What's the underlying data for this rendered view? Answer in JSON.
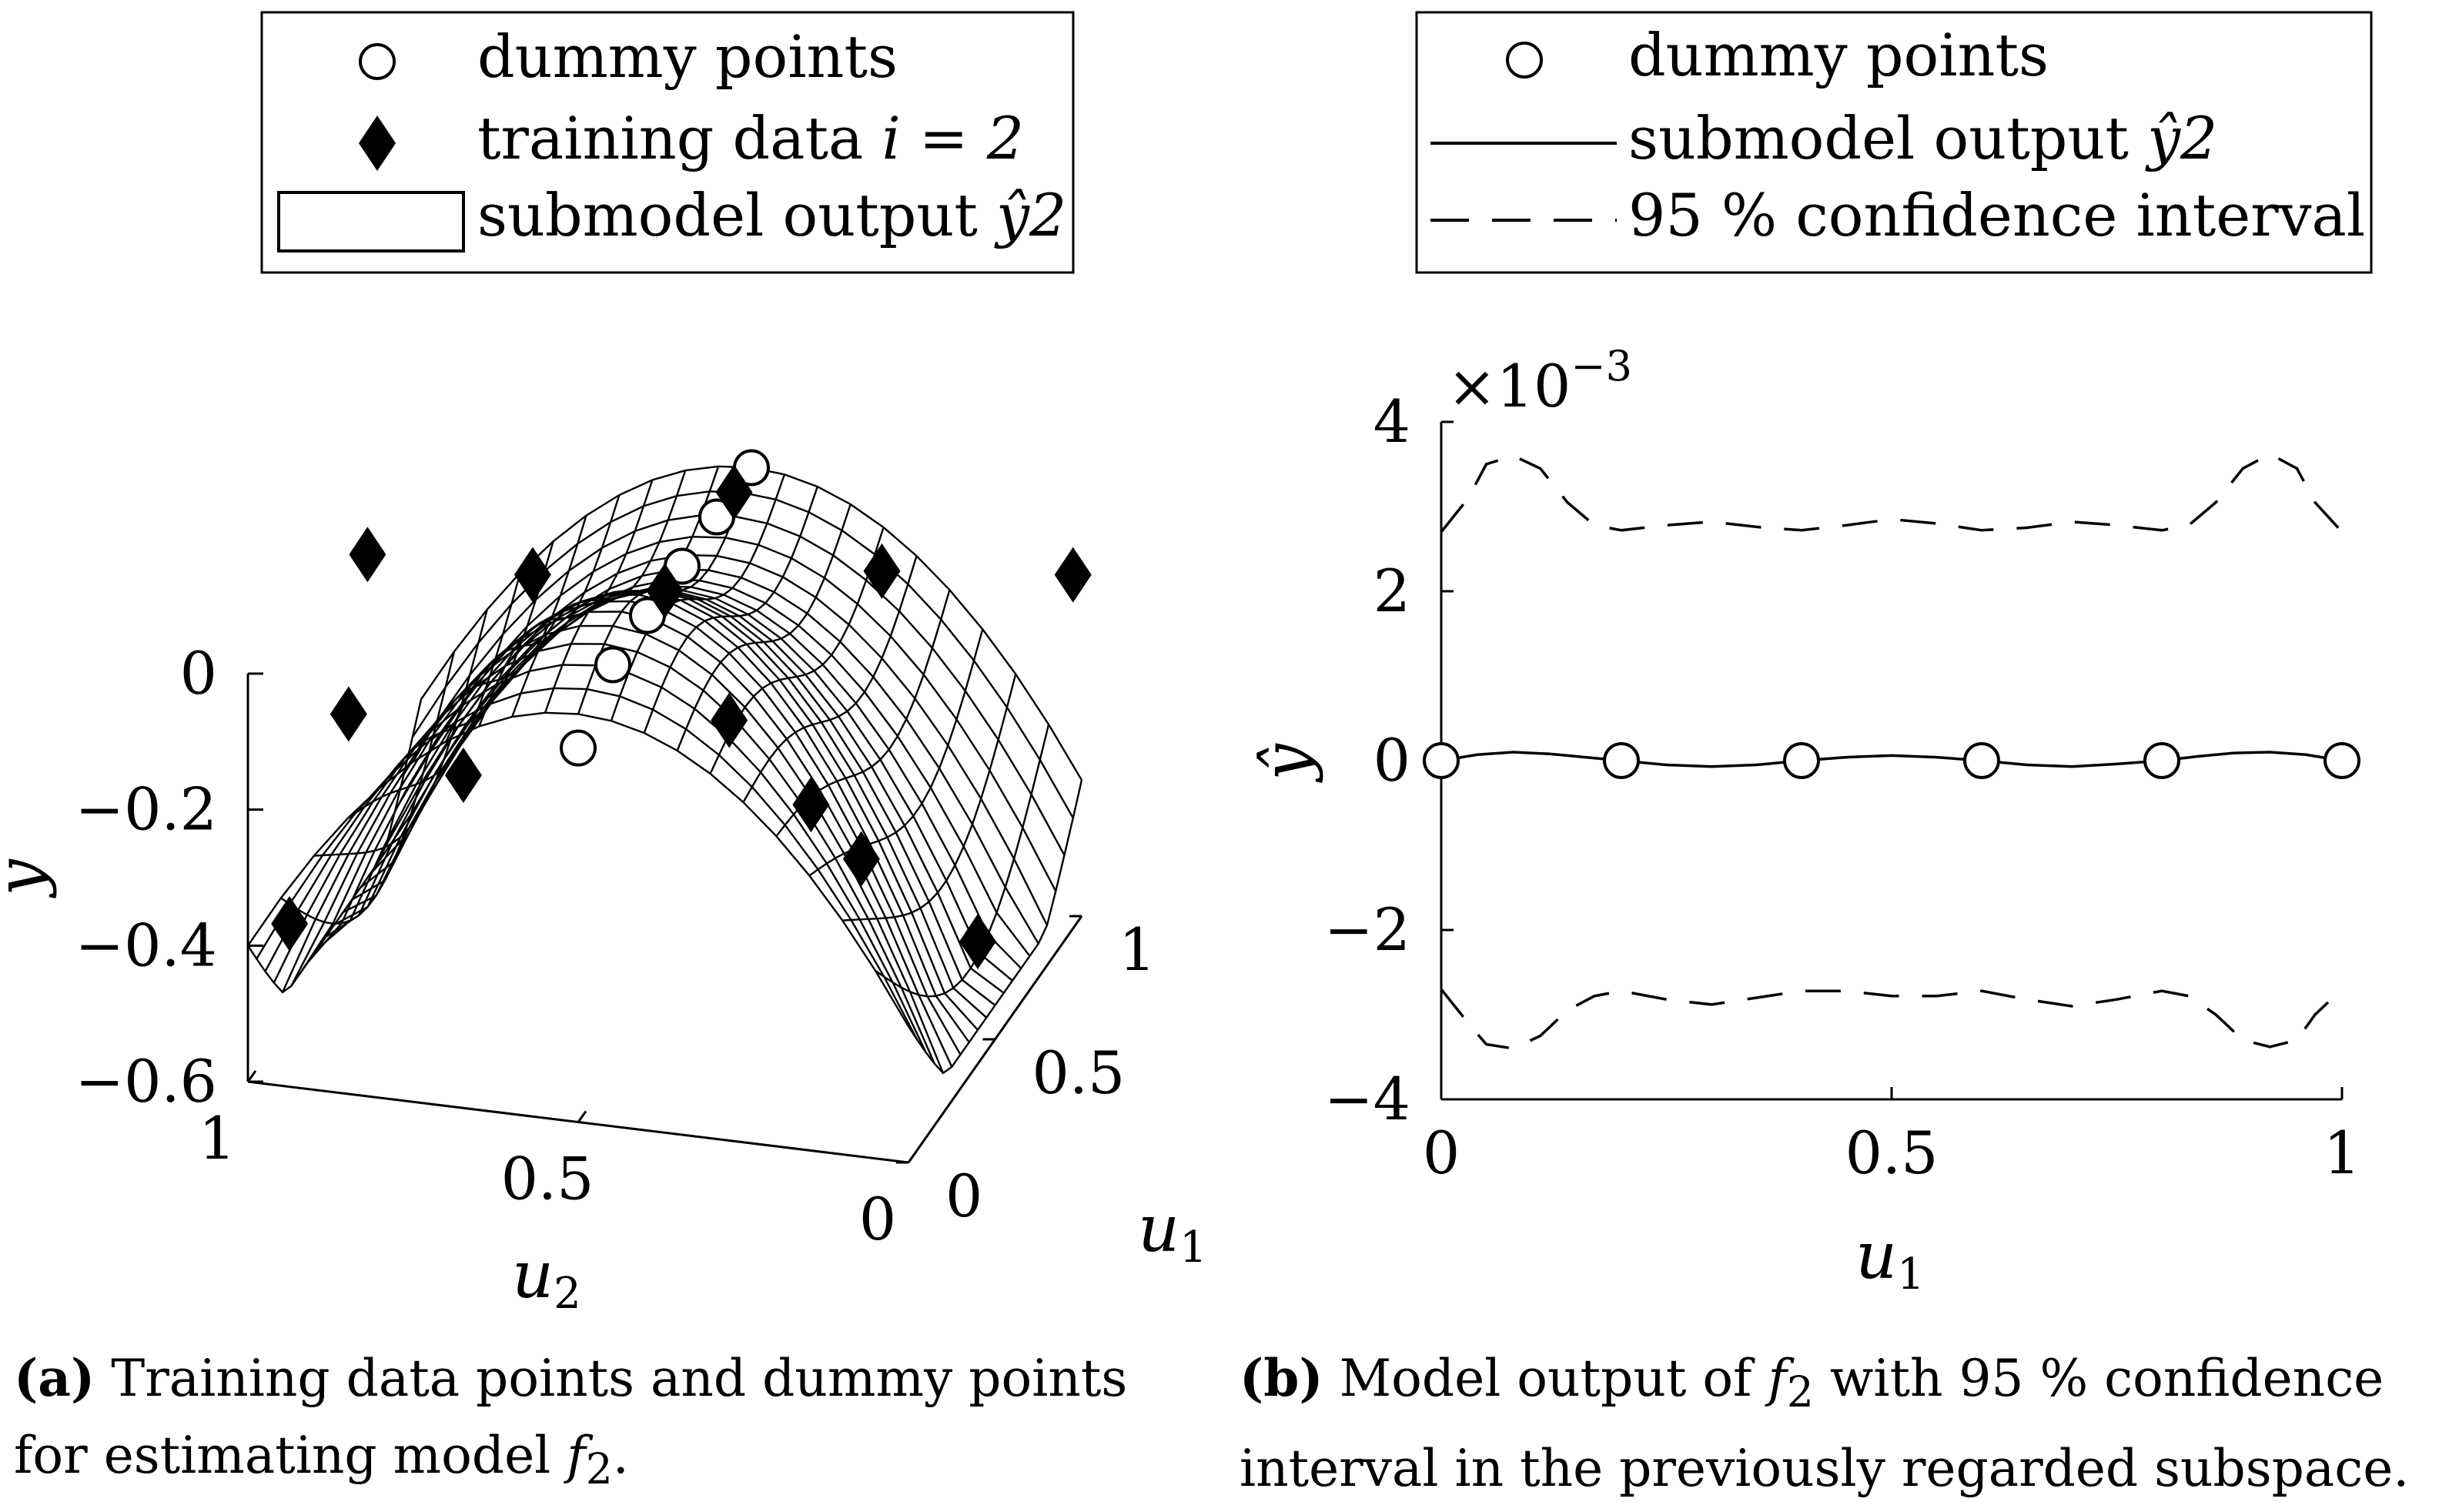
{
  "chart_data": [
    {
      "type": "surface3d",
      "panel": "a",
      "legend": {
        "placement": "top",
        "entries": [
          {
            "label": "dummy points",
            "marker": "open-circle"
          },
          {
            "label_prefix": "training data ",
            "label_math": "i = 2",
            "marker": "filled-diamond"
          },
          {
            "label_prefix": "submodel output ",
            "label_math": "ŷ2",
            "marker": "mesh-surface"
          }
        ]
      },
      "zlabel": "y",
      "xlabel_base": "u",
      "xlabel_sub": "2",
      "ylabel_base": "u",
      "ylabel_sub": "1",
      "ztick_labels": [
        "0",
        "−0.2",
        "−0.4",
        "−0.6"
      ],
      "ztick_values": [
        0,
        -0.2,
        -0.4,
        -0.6
      ],
      "xtick_labels": [
        "1",
        "0.5",
        "0"
      ],
      "xtick_values": [
        1,
        0.5,
        0
      ],
      "ytick_labels": [
        "0",
        "0.5",
        "1"
      ],
      "ytick_values": [
        0,
        0.5,
        1
      ],
      "xlim": [
        0,
        1
      ],
      "ylim": [
        0,
        1
      ],
      "zlim": [
        -0.6,
        0
      ],
      "dummy_points": [
        {
          "u1": 0.0,
          "u2": 0.5,
          "y": -0.05
        },
        {
          "u1": 0.2,
          "u2": 0.5,
          "y": 0.0
        },
        {
          "u1": 0.4,
          "u2": 0.5,
          "y": 0.0
        },
        {
          "u1": 0.6,
          "u2": 0.5,
          "y": 0.0
        },
        {
          "u1": 0.8,
          "u2": 0.5,
          "y": 0.0
        },
        {
          "u1": 1.0,
          "u2": 0.5,
          "y": 0.0
        }
      ],
      "training_points": [
        {
          "u1": 0.05,
          "u2": 0.95,
          "y": -0.38
        },
        {
          "u1": 0.2,
          "u2": 0.9,
          "y": -0.12
        },
        {
          "u1": 0.1,
          "u2": 0.7,
          "y": -0.15
        },
        {
          "u1": 0.5,
          "u2": 0.95,
          "y": 0.0
        },
        {
          "u1": 0.5,
          "u2": 0.7,
          "y": 0.0
        },
        {
          "u1": 0.9,
          "u2": 0.5,
          "y": 0.0
        },
        {
          "u1": 0.5,
          "u2": 0.5,
          "y": 0.0
        },
        {
          "u1": 0.3,
          "u2": 0.35,
          "y": -0.1
        },
        {
          "u1": 0.8,
          "u2": 0.25,
          "y": -0.05
        },
        {
          "u1": 0.2,
          "u2": 0.2,
          "y": -0.17
        },
        {
          "u1": 0.3,
          "u2": 0.15,
          "y": -0.28
        },
        {
          "u1": 0.95,
          "u2": 0.0,
          "y": -0.08
        },
        {
          "u1": 0.4,
          "u2": 0.0,
          "y": -0.42
        }
      ]
    },
    {
      "type": "line",
      "panel": "b",
      "legend": {
        "placement": "top",
        "entries": [
          {
            "label": "dummy points",
            "marker": "open-circle"
          },
          {
            "label_prefix": "submodel output ",
            "label_math": "ŷ2",
            "line": "solid"
          },
          {
            "label": "95 % confidence interval",
            "line": "dashed"
          }
        ]
      },
      "xlabel_base": "u",
      "xlabel_sub": "1",
      "ylabel": "ŷ",
      "y_multiplier": "×10−3",
      "y_multiplier_base": "×10",
      "y_multiplier_exp": "−3",
      "xlim": [
        0,
        1
      ],
      "ylim": [
        -4,
        4
      ],
      "xtick_values": [
        0,
        0.5,
        1
      ],
      "xtick_labels": [
        "0",
        "0.5",
        "1"
      ],
      "ytick_values": [
        4,
        2,
        0,
        -2,
        -4
      ],
      "ytick_labels": [
        "4",
        "2",
        "0",
        "−2",
        "−4"
      ],
      "grid": false,
      "dummy_points": {
        "x": [
          0,
          0.2,
          0.4,
          0.6,
          0.8,
          1.0
        ],
        "y": [
          0,
          0,
          0,
          0,
          0,
          0
        ]
      },
      "series": [
        {
          "line": "solid",
          "x": [
            0,
            0.04,
            0.08,
            0.12,
            0.16,
            0.2,
            0.25,
            0.3,
            0.35,
            0.4,
            0.45,
            0.5,
            0.55,
            0.6,
            0.65,
            0.7,
            0.75,
            0.8,
            0.84,
            0.88,
            0.92,
            0.96,
            1.0
          ],
          "y": [
            0,
            0.07,
            0.1,
            0.08,
            0.04,
            0,
            -0.05,
            -0.07,
            -0.05,
            0,
            0.04,
            0.06,
            0.04,
            0,
            -0.05,
            -0.07,
            -0.04,
            0,
            0.05,
            0.09,
            0.1,
            0.07,
            0
          ]
        },
        {
          "line": "dashed",
          "x": [
            0,
            0.03,
            0.05,
            0.08,
            0.11,
            0.14,
            0.17,
            0.2,
            0.25,
            0.3,
            0.35,
            0.4,
            0.45,
            0.5,
            0.55,
            0.6,
            0.65,
            0.7,
            0.75,
            0.8,
            0.83,
            0.86,
            0.89,
            0.92,
            0.95,
            0.97,
            1.0
          ],
          "y": [
            2.7,
            3.1,
            3.5,
            3.6,
            3.45,
            3.05,
            2.78,
            2.72,
            2.78,
            2.82,
            2.76,
            2.72,
            2.78,
            2.85,
            2.8,
            2.72,
            2.75,
            2.82,
            2.78,
            2.72,
            2.78,
            3.05,
            3.45,
            3.62,
            3.45,
            3.05,
            2.7
          ]
        },
        {
          "line": "dashed",
          "x": [
            0,
            0.03,
            0.05,
            0.08,
            0.11,
            0.14,
            0.17,
            0.2,
            0.25,
            0.3,
            0.35,
            0.4,
            0.45,
            0.5,
            0.55,
            0.6,
            0.65,
            0.7,
            0.75,
            0.8,
            0.83,
            0.86,
            0.89,
            0.92,
            0.95,
            0.97,
            1.0
          ],
          "y": [
            -2.7,
            -3.1,
            -3.35,
            -3.4,
            -3.25,
            -2.95,
            -2.78,
            -2.72,
            -2.82,
            -2.88,
            -2.8,
            -2.72,
            -2.72,
            -2.78,
            -2.78,
            -2.72,
            -2.82,
            -2.9,
            -2.82,
            -2.72,
            -2.78,
            -3.0,
            -3.3,
            -3.38,
            -3.3,
            -3.0,
            -2.7
          ]
        }
      ]
    }
  ],
  "captions": {
    "a": {
      "letter": "(a)",
      "text": "Training data points and dummy points for estimating model ",
      "func": "f",
      "sub": "2",
      "end": "."
    },
    "b": {
      "letter": "(b)",
      "text": "Model output of ",
      "func": "f",
      "sub": "2",
      "text2": " with 95 % confidence interval in the previously regarded subspace."
    }
  }
}
